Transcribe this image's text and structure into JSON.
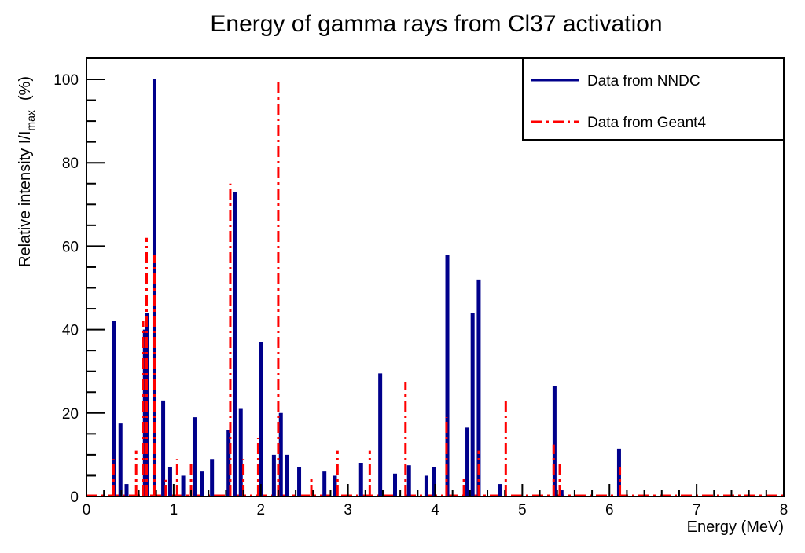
{
  "chart_data": {
    "type": "bar",
    "title": "Energy of gamma rays from Cl37 activation",
    "xlabel": "Energy (MeV)",
    "ylabel": "Relative intensity I/I",
    "ylabel_sub": "max",
    "ylabel_unit": "(%)",
    "xlim": [
      0,
      8
    ],
    "ylim": [
      0,
      105
    ],
    "xticks": [
      "0",
      "1",
      "2",
      "3",
      "4",
      "5",
      "6",
      "7",
      "8"
    ],
    "yticks": [
      "0",
      "20",
      "40",
      "60",
      "80",
      "100"
    ],
    "grid": false,
    "legend_position": "top-right",
    "series": [
      {
        "name": "Data from NNDC",
        "color": "#00008b",
        "style": "solid",
        "x": [
          0.32,
          0.39,
          0.46,
          0.67,
          0.69,
          0.78,
          0.88,
          0.96,
          1.11,
          1.24,
          1.33,
          1.44,
          1.63,
          1.7,
          1.77,
          2.0,
          2.15,
          2.23,
          2.3,
          2.44,
          2.73,
          2.85,
          3.15,
          3.37,
          3.54,
          3.7,
          3.9,
          3.99,
          4.14,
          4.37,
          4.43,
          4.5,
          4.74,
          5.37,
          5.45,
          6.11
        ],
        "y": [
          42,
          17.5,
          3,
          40,
          44,
          100,
          23,
          7,
          5,
          19,
          6,
          9,
          16,
          73,
          21,
          37,
          10,
          20,
          10,
          7,
          6,
          5,
          8,
          29.5,
          5.5,
          7.5,
          5,
          7,
          58,
          16.5,
          44,
          52,
          3,
          26.5,
          1.5,
          11.5
        ]
      },
      {
        "name": "Data from Geant4",
        "color": "#ff0000",
        "style": "dash-dot",
        "x": [
          0.31,
          0.57,
          0.65,
          0.69,
          0.78,
          0.91,
          1.04,
          1.2,
          1.65,
          1.8,
          1.97,
          2.2,
          2.58,
          2.88,
          3.25,
          3.66,
          4.13,
          4.33,
          4.5,
          4.81,
          5.36,
          5.43,
          6.12
        ],
        "y": [
          9,
          11,
          42,
          62,
          58,
          4,
          9,
          8,
          75,
          9,
          14,
          100,
          5,
          11,
          11,
          27.5,
          19,
          5,
          11,
          23,
          12.5,
          8,
          7
        ]
      }
    ]
  }
}
